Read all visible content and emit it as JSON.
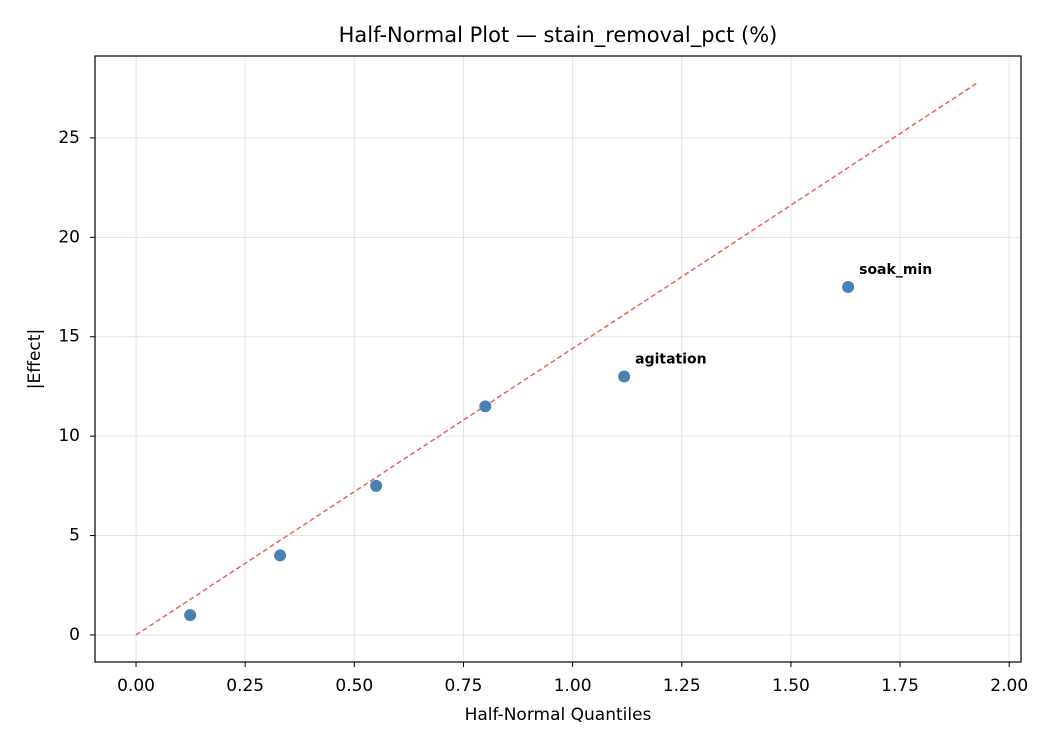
{
  "chart_data": {
    "type": "scatter",
    "title": "Half-Normal Plot — stain_removal_pct (%)",
    "x_label": "Half-Normal Quantiles",
    "y_label": "|Effect|",
    "series": [
      {
        "color": "#4682b4",
        "x": [
          0.124,
          0.33,
          0.55,
          0.8,
          1.118,
          1.631
        ],
        "values": [
          1.0,
          4.0,
          7.5,
          11.5,
          13.0,
          17.5
        ],
        "point_labels": [
          null,
          null,
          null,
          null,
          "agitation",
          "soak_min"
        ],
        "label_color": "#ff0000"
      }
    ],
    "reference_line": {
      "x": [
        0,
        1.927
      ],
      "y": [
        0,
        27.77
      ],
      "color": "#f0605a"
    },
    "xlim": [
      -0.094,
      2.027
    ],
    "ylim": [
      -1.36,
      29.12
    ],
    "xticks": [
      {
        "value": 0,
        "label": "0.00"
      },
      {
        "value": 0.25,
        "label": "0.25"
      },
      {
        "value": 0.5,
        "label": "0.50"
      },
      {
        "value": 0.75,
        "label": "0.75"
      },
      {
        "value": 1,
        "label": "1.00"
      },
      {
        "value": 1.25,
        "label": "1.25"
      },
      {
        "value": 1.5,
        "label": "1.50"
      },
      {
        "value": 1.75,
        "label": "1.75"
      },
      {
        "value": 2,
        "label": "2.00"
      }
    ],
    "yticks": [
      0,
      5,
      10,
      15,
      20,
      25
    ],
    "grid": true
  }
}
